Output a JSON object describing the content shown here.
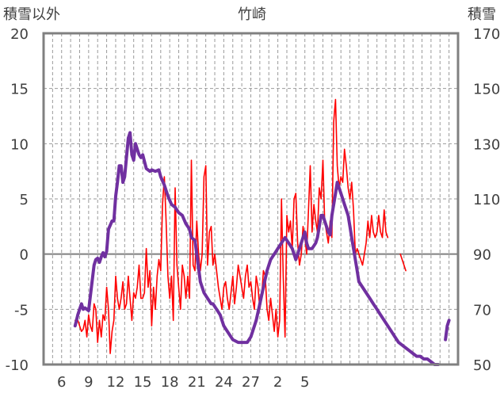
{
  "chart_data": {
    "type": "line",
    "title": "竹崎",
    "left_axis_label": "積雪以外",
    "right_axis_label": "積雪",
    "y_left_lim": [
      -10,
      20
    ],
    "y_left_ticks": [
      20,
      15,
      10,
      5,
      0,
      -5,
      -10
    ],
    "y_right_lim": [
      50,
      170
    ],
    "y_right_ticks": [
      170,
      150,
      130,
      110,
      90,
      70,
      50
    ],
    "x_tick_labels": [
      "6",
      "9",
      "12",
      "15",
      "18",
      "21",
      "24",
      "27",
      "2",
      "5"
    ],
    "grid": "dashed",
    "colors": {
      "series_other": "#ff0000",
      "series_snow": "#7030a0",
      "frame": "#808080"
    },
    "series": [
      {
        "axis": "left",
        "points": [
          [
            3.5,
            -6
          ],
          [
            3.8,
            -6
          ],
          [
            4.0,
            -6.5
          ],
          [
            4.2,
            -7
          ],
          [
            4.4,
            -6.8
          ],
          [
            4.6,
            -6
          ],
          [
            4.8,
            -7.5
          ],
          [
            5.0,
            -5.5
          ],
          [
            5.2,
            -6.5
          ],
          [
            5.4,
            -7
          ],
          [
            5.6,
            -4.5
          ],
          [
            5.8,
            -5
          ],
          [
            6.0,
            -8
          ],
          [
            6.2,
            -6
          ],
          [
            6.4,
            -7.5
          ],
          [
            6.6,
            -5.5
          ],
          [
            6.8,
            -6
          ],
          [
            7.0,
            -3
          ],
          [
            7.2,
            -5
          ],
          [
            7.4,
            -9
          ],
          [
            7.6,
            -7
          ],
          [
            7.8,
            -6
          ],
          [
            8.0,
            -2
          ],
          [
            8.2,
            -4
          ],
          [
            8.4,
            -5
          ],
          [
            8.6,
            -4
          ],
          [
            8.8,
            -2.5
          ],
          [
            9.0,
            -5
          ],
          [
            9.2,
            -4.5
          ],
          [
            9.4,
            -2
          ],
          [
            9.6,
            -4
          ],
          [
            9.8,
            -6
          ],
          [
            10.0,
            -3.5
          ],
          [
            10.2,
            -4
          ],
          [
            10.4,
            -3
          ],
          [
            10.6,
            -1
          ],
          [
            10.8,
            -4
          ],
          [
            11.0,
            -4
          ],
          [
            11.2,
            -3.5
          ],
          [
            11.4,
            0.5
          ],
          [
            11.6,
            -3
          ],
          [
            11.8,
            -1.5
          ],
          [
            12.0,
            -6.5
          ],
          [
            12.2,
            -3
          ],
          [
            12.4,
            -5
          ],
          [
            12.6,
            -2
          ],
          [
            12.8,
            -0.5
          ],
          [
            13.0,
            -1.5
          ],
          [
            13.2,
            4.5
          ],
          [
            13.4,
            7
          ],
          [
            13.6,
            3
          ],
          [
            13.8,
            -2
          ],
          [
            14.0,
            -4
          ],
          [
            14.2,
            -2
          ],
          [
            14.4,
            -6
          ],
          [
            14.6,
            6
          ],
          [
            14.8,
            -1
          ],
          [
            15.0,
            -3
          ],
          [
            15.2,
            -5
          ],
          [
            15.4,
            -1
          ],
          [
            15.6,
            -2
          ],
          [
            15.8,
            -4
          ],
          [
            16.0,
            -2
          ],
          [
            16.2,
            -4
          ],
          [
            16.4,
            8.5
          ],
          [
            16.6,
            -1
          ],
          [
            16.8,
            -1.5
          ],
          [
            17.0,
            3
          ],
          [
            17.2,
            0
          ],
          [
            17.4,
            -1.5
          ],
          [
            17.6,
            0
          ],
          [
            17.8,
            7
          ],
          [
            18.0,
            8
          ],
          [
            18.2,
            -1
          ],
          [
            18.4,
            2
          ],
          [
            18.6,
            2.5
          ],
          [
            18.8,
            -1
          ],
          [
            19.0,
            0
          ],
          [
            19.2,
            -1.5
          ],
          [
            19.4,
            -3
          ],
          [
            19.6,
            -4
          ],
          [
            19.8,
            -5
          ],
          [
            20.0,
            -3
          ],
          [
            20.2,
            -2.5
          ],
          [
            20.4,
            -4
          ],
          [
            20.6,
            -5
          ],
          [
            20.8,
            -3.5
          ],
          [
            21.0,
            -2
          ],
          [
            21.2,
            -4.5
          ],
          [
            21.4,
            -3
          ],
          [
            21.6,
            -1
          ],
          [
            21.8,
            -2
          ],
          [
            22.0,
            -3
          ],
          [
            22.2,
            -4
          ],
          [
            22.4,
            -2
          ],
          [
            22.6,
            -1
          ],
          [
            22.8,
            -3
          ],
          [
            23.0,
            -2.5
          ],
          [
            23.2,
            -4
          ],
          [
            23.4,
            -5
          ],
          [
            23.6,
            -2
          ],
          [
            23.8,
            -3
          ],
          [
            24.0,
            -5
          ],
          [
            24.2,
            -4
          ],
          [
            24.4,
            -1.5
          ],
          [
            24.6,
            -2
          ],
          [
            24.8,
            -5
          ],
          [
            25.0,
            -6
          ],
          [
            25.2,
            -4
          ],
          [
            25.4,
            -5.5
          ],
          [
            25.6,
            -7
          ],
          [
            25.8,
            -5
          ],
          [
            26.0,
            -7.5
          ],
          [
            26.2,
            -6
          ],
          [
            26.4,
            5
          ],
          [
            26.6,
            -2
          ],
          [
            26.8,
            -7.5
          ],
          [
            27.0,
            3.5
          ],
          [
            27.2,
            2
          ],
          [
            27.4,
            3
          ],
          [
            27.6,
            0.5
          ],
          [
            27.8,
            5
          ],
          [
            28.0,
            5.5
          ],
          [
            28.2,
            1
          ],
          [
            28.4,
            -1
          ],
          [
            28.6,
            0
          ],
          [
            28.8,
            2.5
          ],
          [
            29.0,
            1.5
          ],
          [
            29.2,
            0
          ],
          [
            29.4,
            4
          ],
          [
            29.6,
            8
          ],
          [
            29.8,
            2
          ],
          [
            30.0,
            4.5
          ],
          [
            30.2,
            3
          ],
          [
            30.4,
            2
          ],
          [
            30.6,
            6
          ],
          [
            30.8,
            5
          ],
          [
            31.0,
            8.5
          ],
          [
            31.2,
            3
          ],
          [
            31.4,
            2
          ],
          [
            31.6,
            1
          ],
          [
            31.8,
            3
          ],
          [
            32.0,
            1.5
          ],
          [
            32.2,
            12
          ],
          [
            32.4,
            14
          ],
          [
            32.6,
            8
          ],
          [
            32.8,
            6
          ],
          [
            33.0,
            7
          ],
          [
            33.2,
            6.5
          ],
          [
            33.4,
            9.5
          ],
          [
            33.6,
            8
          ],
          [
            33.8,
            6
          ],
          [
            34.0,
            5
          ],
          [
            34.2,
            6.5
          ],
          [
            34.4,
            4
          ],
          [
            34.6,
            0
          ],
          [
            34.8,
            0.5
          ],
          [
            35.0,
            0
          ],
          [
            35.2,
            -0.5
          ],
          [
            35.4,
            -1
          ],
          [
            35.6,
            0
          ],
          [
            35.8,
            1
          ],
          [
            36.0,
            3
          ],
          [
            36.2,
            1.5
          ],
          [
            36.4,
            3.5
          ],
          [
            36.6,
            2
          ],
          [
            36.8,
            1.5
          ],
          [
            37.0,
            2
          ],
          [
            37.2,
            3.5
          ],
          [
            37.4,
            2
          ],
          [
            37.6,
            1.5
          ],
          [
            37.8,
            4
          ],
          [
            38.0,
            2
          ],
          [
            38.2,
            1.5
          ]
        ]
      },
      {
        "axis": "left",
        "points": [
          [
            39.6,
            0
          ],
          [
            39.8,
            -0.5
          ],
          [
            40.0,
            -1
          ],
          [
            40.2,
            -1.5
          ]
        ]
      },
      {
        "axis": "right",
        "points": [
          [
            3.5,
            64
          ],
          [
            3.8,
            68
          ],
          [
            4.0,
            70
          ],
          [
            4.2,
            72
          ],
          [
            4.4,
            70
          ],
          [
            4.6,
            70.5
          ],
          [
            4.8,
            70
          ],
          [
            5.0,
            69.5
          ],
          [
            5.2,
            75
          ],
          [
            5.6,
            86
          ],
          [
            5.8,
            88
          ],
          [
            6.0,
            88.5
          ],
          [
            6.2,
            87
          ],
          [
            6.4,
            89
          ],
          [
            6.6,
            90.5
          ],
          [
            6.8,
            89
          ],
          [
            7.0,
            91
          ],
          [
            7.2,
            99
          ],
          [
            7.6,
            102
          ],
          [
            7.8,
            102
          ],
          [
            8.0,
            111
          ],
          [
            8.2,
            116
          ],
          [
            8.4,
            122
          ],
          [
            8.6,
            122
          ],
          [
            8.8,
            116
          ],
          [
            9.0,
            118
          ],
          [
            9.2,
            125
          ],
          [
            9.4,
            132
          ],
          [
            9.6,
            134
          ],
          [
            9.8,
            126
          ],
          [
            10.0,
            124
          ],
          [
            10.2,
            130
          ],
          [
            10.4,
            128
          ],
          [
            10.6,
            126
          ],
          [
            10.8,
            125
          ],
          [
            11.0,
            126
          ],
          [
            11.4,
            121
          ],
          [
            11.8,
            120
          ],
          [
            12.0,
            120.5
          ],
          [
            12.4,
            120
          ],
          [
            12.8,
            120.5
          ],
          [
            13.0,
            118
          ],
          [
            13.4,
            115
          ],
          [
            13.8,
            111
          ],
          [
            14.2,
            108
          ],
          [
            14.6,
            107
          ],
          [
            15.0,
            105
          ],
          [
            15.4,
            104
          ],
          [
            15.8,
            101
          ],
          [
            16.0,
            100
          ],
          [
            16.2,
            99
          ],
          [
            16.4,
            96
          ],
          [
            16.8,
            95
          ],
          [
            17.0,
            90
          ],
          [
            17.2,
            85
          ],
          [
            17.4,
            80
          ],
          [
            17.8,
            76
          ],
          [
            18.2,
            74
          ],
          [
            18.6,
            72
          ],
          [
            18.8,
            72
          ],
          [
            19.2,
            70
          ],
          [
            19.6,
            68
          ],
          [
            20.0,
            64
          ],
          [
            20.4,
            62
          ],
          [
            20.8,
            60
          ],
          [
            21.0,
            59
          ],
          [
            21.6,
            58
          ],
          [
            22.2,
            58
          ],
          [
            22.6,
            58
          ],
          [
            23.0,
            60
          ],
          [
            23.2,
            62
          ],
          [
            23.6,
            66
          ],
          [
            24.0,
            72
          ],
          [
            24.4,
            78
          ],
          [
            24.8,
            84
          ],
          [
            25.2,
            88
          ],
          [
            25.6,
            90
          ],
          [
            26.0,
            92
          ],
          [
            26.4,
            94
          ],
          [
            26.8,
            96
          ],
          [
            27.2,
            94
          ],
          [
            27.6,
            92
          ],
          [
            27.8,
            90
          ],
          [
            28.0,
            88
          ],
          [
            28.4,
            92
          ],
          [
            28.8,
            96
          ],
          [
            29.0,
            98
          ],
          [
            29.2,
            94
          ],
          [
            29.4,
            92
          ],
          [
            29.8,
            92
          ],
          [
            30.2,
            94
          ],
          [
            30.4,
            96
          ],
          [
            30.6,
            100
          ],
          [
            30.8,
            104
          ],
          [
            31.0,
            104
          ],
          [
            31.2,
            102
          ],
          [
            31.4,
            100
          ],
          [
            31.6,
            98
          ],
          [
            31.8,
            97
          ],
          [
            32.0,
            104
          ],
          [
            32.2,
            108
          ],
          [
            32.4,
            112
          ],
          [
            32.6,
            116
          ],
          [
            32.8,
            114
          ],
          [
            33.0,
            112
          ],
          [
            33.2,
            110
          ],
          [
            33.4,
            108
          ],
          [
            33.6,
            106
          ],
          [
            33.8,
            104
          ],
          [
            34.0,
            100
          ],
          [
            34.2,
            96
          ],
          [
            34.4,
            92
          ],
          [
            34.6,
            88
          ],
          [
            34.8,
            84
          ],
          [
            35.0,
            80
          ],
          [
            35.4,
            78
          ],
          [
            35.8,
            76
          ],
          [
            36.2,
            74
          ],
          [
            36.6,
            72
          ],
          [
            37.0,
            70
          ],
          [
            37.4,
            68
          ],
          [
            37.8,
            66
          ],
          [
            38.2,
            64
          ],
          [
            38.6,
            62
          ],
          [
            39.0,
            60
          ],
          [
            39.4,
            58
          ],
          [
            39.8,
            57
          ],
          [
            40.2,
            56
          ],
          [
            40.6,
            55
          ],
          [
            41.0,
            54
          ],
          [
            41.4,
            53
          ],
          [
            41.8,
            53
          ],
          [
            42.2,
            52
          ],
          [
            42.6,
            52
          ],
          [
            43.0,
            51
          ],
          [
            43.4,
            50
          ],
          [
            43.8,
            50
          ]
        ]
      },
      {
        "axis": "right",
        "points": [
          [
            44.6,
            59
          ],
          [
            44.8,
            64
          ],
          [
            45.0,
            66
          ]
        ]
      }
    ]
  }
}
